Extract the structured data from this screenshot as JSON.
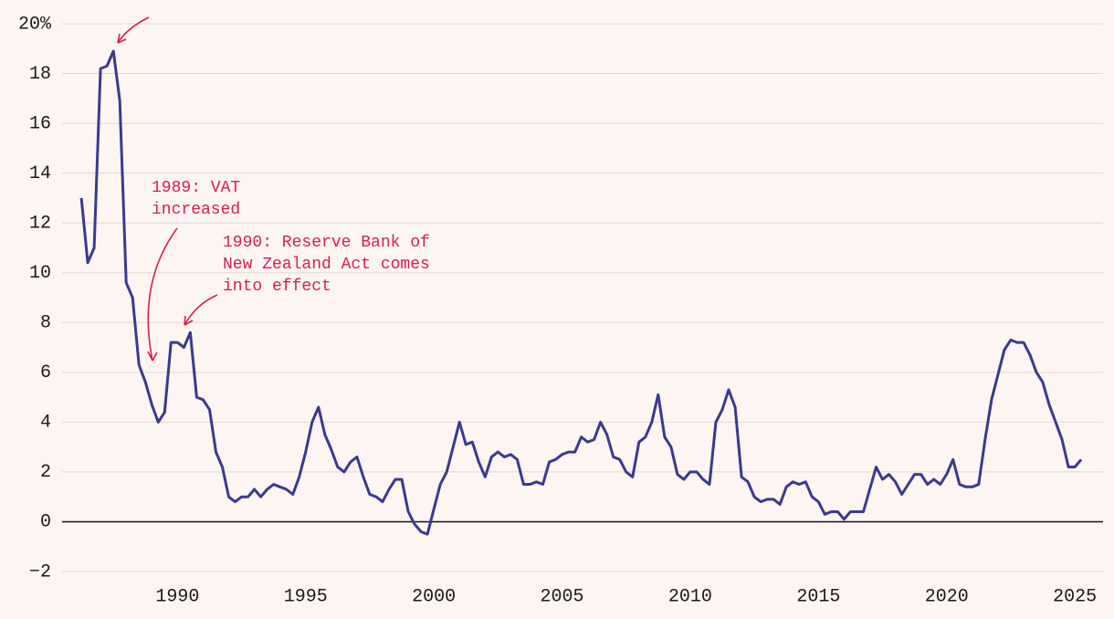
{
  "chart_data": {
    "type": "line",
    "x": [
      1986.25,
      1986.5,
      1986.75,
      1987,
      1987.25,
      1987.5,
      1987.75,
      1988,
      1988.25,
      1988.5,
      1988.75,
      1989,
      1989.25,
      1989.5,
      1989.75,
      1990,
      1990.25,
      1990.5,
      1990.75,
      1991,
      1991.25,
      1991.5,
      1991.75,
      1992,
      1992.25,
      1992.5,
      1992.75,
      1993,
      1993.25,
      1993.5,
      1993.75,
      1994,
      1994.25,
      1994.5,
      1994.75,
      1995,
      1995.25,
      1995.5,
      1995.75,
      1996,
      1996.25,
      1996.5,
      1996.75,
      1997,
      1997.25,
      1997.5,
      1997.75,
      1998,
      1998.25,
      1998.5,
      1998.75,
      1999,
      1999.25,
      1999.5,
      1999.75,
      2000,
      2000.25,
      2000.5,
      2000.75,
      2001,
      2001.25,
      2001.5,
      2001.75,
      2002,
      2002.25,
      2002.5,
      2002.75,
      2003,
      2003.25,
      2003.5,
      2003.75,
      2004,
      2004.25,
      2004.5,
      2004.75,
      2005,
      2005.25,
      2005.5,
      2005.75,
      2006,
      2006.25,
      2006.5,
      2006.75,
      2007,
      2007.25,
      2007.5,
      2007.75,
      2008,
      2008.25,
      2008.5,
      2008.75,
      2009,
      2009.25,
      2009.5,
      2009.75,
      2010,
      2010.25,
      2010.5,
      2010.75,
      2011,
      2011.25,
      2011.5,
      2011.75,
      2012,
      2012.25,
      2012.5,
      2012.75,
      2013,
      2013.25,
      2013.5,
      2013.75,
      2014,
      2014.25,
      2014.5,
      2014.75,
      2015,
      2015.25,
      2015.5,
      2015.75,
      2016,
      2016.25,
      2016.5,
      2016.75,
      2017,
      2017.25,
      2017.5,
      2017.75,
      2018,
      2018.25,
      2018.5,
      2018.75,
      2019,
      2019.25,
      2019.5,
      2019.75,
      2020,
      2020.25,
      2020.5,
      2020.75,
      2021,
      2021.25,
      2021.5,
      2021.75,
      2022,
      2022.25,
      2022.5,
      2022.75,
      2023,
      2023.25,
      2023.5,
      2023.75,
      2024,
      2024.25,
      2024.5,
      2024.75,
      2025,
      2025.25
    ],
    "series": [
      {
        "color": "#3a3a8c",
        "values": [
          13.0,
          10.4,
          11.0,
          18.2,
          18.3,
          18.9,
          16.9,
          9.6,
          9.0,
          6.3,
          5.6,
          4.7,
          4.0,
          4.4,
          7.2,
          7.2,
          7.0,
          7.6,
          5.0,
          4.9,
          4.5,
          2.8,
          2.2,
          1.0,
          0.8,
          1.0,
          1.0,
          1.3,
          1.0,
          1.3,
          1.5,
          1.4,
          1.3,
          1.1,
          1.8,
          2.8,
          4.0,
          4.6,
          3.5,
          2.9,
          2.2,
          2.0,
          2.4,
          2.6,
          1.8,
          1.1,
          1.0,
          0.8,
          1.3,
          1.7,
          1.7,
          0.4,
          -0.1,
          -0.4,
          -0.5,
          0.5,
          1.5,
          2.0,
          3.0,
          4.0,
          3.1,
          3.2,
          2.4,
          1.8,
          2.6,
          2.8,
          2.6,
          2.7,
          2.5,
          1.5,
          1.5,
          1.6,
          1.5,
          2.4,
          2.5,
          2.7,
          2.8,
          2.8,
          3.4,
          3.2,
          3.3,
          4.0,
          3.5,
          2.6,
          2.5,
          2.0,
          1.8,
          3.2,
          3.4,
          4.0,
          5.1,
          3.4,
          3.0,
          1.9,
          1.7,
          2.0,
          2.0,
          1.7,
          1.5,
          4.0,
          4.5,
          5.3,
          4.6,
          1.8,
          1.6,
          1.0,
          0.8,
          0.9,
          0.9,
          0.7,
          1.4,
          1.6,
          1.5,
          1.6,
          1.0,
          0.8,
          0.3,
          0.4,
          0.4,
          0.1,
          0.4,
          0.4,
          0.4,
          1.3,
          2.2,
          1.7,
          1.9,
          1.6,
          1.1,
          1.5,
          1.9,
          1.9,
          1.5,
          1.7,
          1.5,
          1.9,
          2.5,
          1.5,
          1.4,
          1.4,
          1.5,
          3.3,
          4.9,
          5.9,
          6.9,
          7.3,
          7.2,
          7.2,
          6.7,
          6.0,
          5.6,
          4.7,
          4.0,
          3.3,
          2.2,
          2.2,
          2.5
        ]
      }
    ],
    "xlim": [
      1985.5,
      2026.1
    ],
    "xticks": [
      1990,
      1995,
      2000,
      2005,
      2010,
      2015,
      2020,
      2025
    ],
    "ylim": [
      -2,
      20
    ],
    "yticks": [
      {
        "value": 20,
        "label": "20%"
      },
      18,
      16,
      14,
      12,
      10,
      8,
      6,
      4,
      2,
      0,
      {
        "value": -2,
        "label": "−2"
      }
    ],
    "grid": true,
    "annotations": [
      {
        "lines": [
          "1989: VAT",
          "increased"
        ],
        "color": "#d6204e"
      },
      {
        "lines": [
          "1990: Reserve Bank of",
          "New Zealand Act comes",
          "into effect"
        ],
        "color": "#d6204e"
      }
    ]
  }
}
